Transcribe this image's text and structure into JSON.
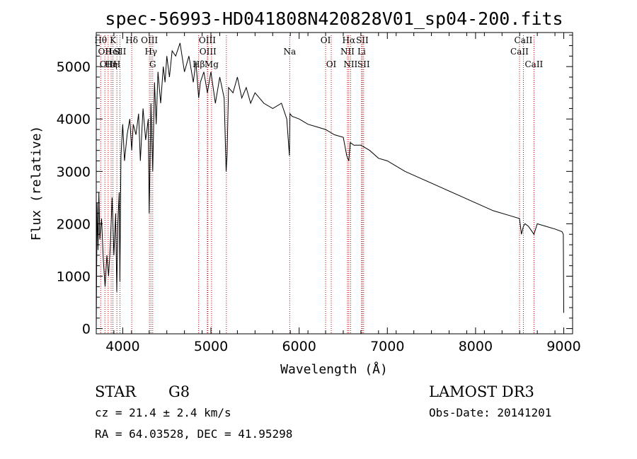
{
  "chart_data": {
    "type": "line",
    "title": "spec-56993-HD041808N420828V01_sp04-200.fits",
    "xlabel": "Wavelength (Å)",
    "ylabel": "Flux (relative)",
    "xlim": [
      3700,
      9100
    ],
    "ylim": [
      -100,
      5650
    ],
    "xticks": [
      4000,
      5000,
      6000,
      7000,
      8000,
      9000
    ],
    "yticks": [
      0,
      1000,
      2000,
      3000,
      4000,
      5000
    ],
    "grid": false,
    "series": [
      {
        "x": [
          3700,
          3710,
          3720,
          3730,
          3740,
          3760,
          3780,
          3800,
          3820,
          3840,
          3860,
          3880,
          3900,
          3920,
          3933,
          3945,
          3960,
          3968,
          3980,
          4000,
          4020,
          4050,
          4080,
          4102,
          4120,
          4150,
          4180,
          4200,
          4230,
          4260,
          4290,
          4300,
          4320,
          4340,
          4360,
          4380,
          4400,
          4430,
          4460,
          4480,
          4500,
          4530,
          4560,
          4600,
          4650,
          4700,
          4750,
          4800,
          4830,
          4861,
          4880,
          4920,
          4960,
          5000,
          5050,
          5100,
          5150,
          5172,
          5183,
          5200,
          5250,
          5300,
          5350,
          5400,
          5450,
          5500,
          5600,
          5700,
          5800,
          5860,
          5890,
          5896,
          5920,
          6000,
          6100,
          6200,
          6300,
          6400,
          6500,
          6540,
          6563,
          6580,
          6620,
          6700,
          6800,
          6900,
          7000,
          7200,
          7400,
          7600,
          7800,
          8000,
          8200,
          8400,
          8498,
          8520,
          8542,
          8560,
          8600,
          8662,
          8700,
          8800,
          8900,
          8980,
          8995,
          9000
        ],
        "y": [
          0,
          2400,
          1500,
          2600,
          1700,
          2100,
          1300,
          800,
          1400,
          1000,
          1600,
          2500,
          1400,
          2200,
          700,
          2000,
          2600,
          900,
          3300,
          3900,
          3200,
          3700,
          4000,
          3400,
          3900,
          3700,
          4100,
          3200,
          4200,
          3600,
          4000,
          2200,
          4300,
          3000,
          4700,
          3900,
          4900,
          4300,
          5000,
          4700,
          5200,
          4800,
          5300,
          5200,
          5450,
          4900,
          5200,
          4700,
          5100,
          4400,
          4700,
          4900,
          4500,
          4900,
          4300,
          4800,
          4400,
          3000,
          3300,
          4600,
          4500,
          4800,
          4400,
          4600,
          4300,
          4500,
          4300,
          4200,
          4300,
          4000,
          3300,
          4100,
          4050,
          4000,
          3900,
          3850,
          3800,
          3700,
          3650,
          3300,
          3200,
          3550,
          3500,
          3500,
          3400,
          3250,
          3200,
          3000,
          2850,
          2700,
          2550,
          2400,
          2250,
          2150,
          2100,
          1800,
          1950,
          2000,
          1950,
          1800,
          2000,
          1950,
          1900,
          1850,
          1800,
          300
        ]
      }
    ],
    "lines": [
      {
        "w": 3750,
        "row": 0,
        "label": "Hθ"
      },
      {
        "w": 3798,
        "row": 1,
        "label": "OII"
      },
      {
        "w": 3835,
        "row": 2,
        "label": "OIII"
      },
      {
        "w": 3869,
        "row": 2,
        "label": "Hη"
      },
      {
        "w": 3889,
        "row": 0,
        "label": "K"
      },
      {
        "w": 3889,
        "row": 1,
        "label": "HeI"
      },
      {
        "w": 3934,
        "row": 2,
        "label": "H"
      },
      {
        "w": 3969,
        "row": 1,
        "label": "SII"
      },
      {
        "w": 4102,
        "row": 0,
        "label": "Hδ"
      },
      {
        "w": 4303,
        "row": 0,
        "label": "OIII"
      },
      {
        "w": 4320,
        "row": 1,
        "label": "Hγ"
      },
      {
        "w": 4340,
        "row": 2,
        "label": "G"
      },
      {
        "w": 4861,
        "row": 2,
        "label": "Hβ"
      },
      {
        "w": 4959,
        "row": 0,
        "label": "OIII"
      },
      {
        "w": 4966,
        "row": 1,
        "label": "OIII"
      },
      {
        "w": 5007,
        "row": 2,
        "label": "Mg"
      },
      {
        "w": 5175,
        "row": 9,
        "label": ""
      },
      {
        "w": 5893,
        "row": 1,
        "label": "Na"
      },
      {
        "w": 6300,
        "row": 0,
        "label": "OI"
      },
      {
        "w": 6364,
        "row": 2,
        "label": "OI"
      },
      {
        "w": 6548,
        "row": 1,
        "label": "NII"
      },
      {
        "w": 6563,
        "row": 0,
        "label": "Hα"
      },
      {
        "w": 6583,
        "row": 2,
        "label": "NII"
      },
      {
        "w": 6708,
        "row": 1,
        "label": "Li"
      },
      {
        "w": 6716,
        "row": 0,
        "label": "SII"
      },
      {
        "w": 6731,
        "row": 2,
        "label": "SII"
      },
      {
        "w": 8498,
        "row": 1,
        "label": "CaII"
      },
      {
        "w": 8542,
        "row": 0,
        "label": "CaII"
      },
      {
        "w": 8662,
        "row": 2,
        "label": "CaII"
      }
    ]
  },
  "info": {
    "class_label": "STAR",
    "subclass": "G8",
    "survey": "LAMOST DR3",
    "cz": "cz = 21.4 ± 2.4 km/s",
    "obs_date": "Obs-Date: 20141201",
    "radec": "RA =  64.03528, DEC =  41.95298"
  }
}
